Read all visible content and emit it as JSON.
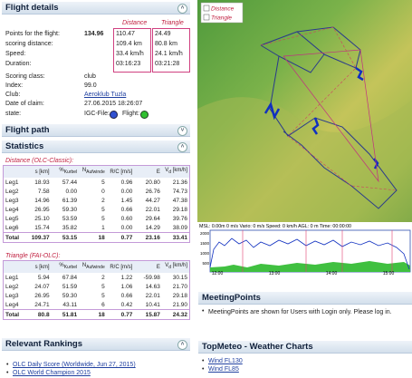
{
  "flight_details": {
    "title": "Flight details",
    "points_label": "Points for the flight:",
    "points": "134.96",
    "row_labels": [
      "scoring distance:",
      "Speed:",
      "Duration:"
    ],
    "distance": {
      "label": "Distance",
      "values": [
        "110.47",
        "109.4 km",
        "33.4 km/h",
        "03:16:23"
      ]
    },
    "triangle": {
      "label": "Triangle",
      "values": [
        "24.49",
        "80.8 km",
        "24.1 km/h",
        "03:21:28"
      ]
    },
    "info": [
      [
        "Scoring class:",
        "club"
      ],
      [
        "Index:",
        "99.0"
      ],
      [
        "Club:",
        "Aeroklub Tuzla"
      ],
      [
        "Date of claim:",
        "27.06.2015 18:26:07"
      ]
    ],
    "state_label": "state:",
    "igc_label": "IGC-File:",
    "flight_label": "Flight:"
  },
  "flight_path": {
    "title": "Flight path"
  },
  "statistics": {
    "title": "Statistics",
    "tables": [
      {
        "caption": "Distance (OLC-Classic):",
        "columns": [
          {
            "text": "s [km]"
          },
          {
            "text": "%",
            "sub": "Kurbel"
          },
          {
            "text": "N",
            "sub": "Aufwinde"
          },
          {
            "text": "R/C [m/s]"
          },
          {
            "text": "E"
          },
          {
            "text": "V",
            "sub": "d",
            "after": " [km/h]"
          }
        ],
        "rows": [
          [
            "Leg1",
            "18.93",
            "57.44",
            "5",
            "0.96",
            "20.80",
            "21.36"
          ],
          [
            "Leg2",
            "7.58",
            "0.00",
            "0",
            "0.00",
            "26.76",
            "74.73"
          ],
          [
            "Leg3",
            "14.96",
            "61.39",
            "2",
            "1.45",
            "44.27",
            "47.38"
          ],
          [
            "Leg4",
            "26.95",
            "59.30",
            "5",
            "0.66",
            "22.01",
            "29.18"
          ],
          [
            "Leg5",
            "25.10",
            "53.59",
            "5",
            "0.60",
            "29.64",
            "39.76"
          ],
          [
            "Leg6",
            "15.74",
            "35.82",
            "1",
            "0.00",
            "14.29",
            "38.09"
          ],
          [
            "Total",
            "109.37",
            "53.15",
            "18",
            "0.77",
            "23.16",
            "33.41"
          ]
        ]
      },
      {
        "caption": "Triangle (FAI-OLC):",
        "columns": [
          {
            "text": "s [km]"
          },
          {
            "text": "%",
            "sub": "Kurbel"
          },
          {
            "text": "N",
            "sub": "Aufwinde"
          },
          {
            "text": "R/C [m/s]"
          },
          {
            "text": "E"
          },
          {
            "text": "V",
            "sub": "d",
            "after": " [km/h]"
          }
        ],
        "rows": [
          [
            "Leg1",
            "5.94",
            "67.84",
            "2",
            "1.22",
            "-59.98",
            "30.15"
          ],
          [
            "Leg2",
            "24.07",
            "51.59",
            "5",
            "1.06",
            "14.63",
            "21.70"
          ],
          [
            "Leg3",
            "26.95",
            "59.30",
            "5",
            "0.66",
            "22.01",
            "29.18"
          ],
          [
            "Leg4",
            "24.71",
            "43.11",
            "6",
            "0.42",
            "10.41",
            "21.90"
          ],
          [
            "Total",
            "80.8",
            "51.81",
            "18",
            "0.77",
            "15.87",
            "24.32"
          ]
        ]
      }
    ]
  },
  "rankings": {
    "title": "Relevant Rankings",
    "items": [
      "OLC Daily Score (Worldwide, Jun 27, 2015)",
      "OLC World Champion 2015"
    ]
  },
  "map": {
    "legend": [
      "Distance",
      "Triangle"
    ]
  },
  "barogram": {
    "info": "MSL: 0.00m   0 m/s Vario:   0 m/s Speed:   0 km/h AGL:   0 m Time: 00:00:00",
    "y_labels": [
      "2000",
      "1500",
      "1000",
      "500"
    ],
    "x_labels": [
      "12:00",
      "13:00",
      "14:00",
      "15:00"
    ]
  },
  "meeting_points": {
    "title": "MeetingPoints",
    "items": [
      "MeetingPoints are shown for Users with Login only. Please log in."
    ],
    "link": "Login"
  },
  "topmeteo": {
    "title": "TopMeteo - Weather Charts",
    "items": [
      "Wind FL130",
      "Wind FL85"
    ]
  }
}
